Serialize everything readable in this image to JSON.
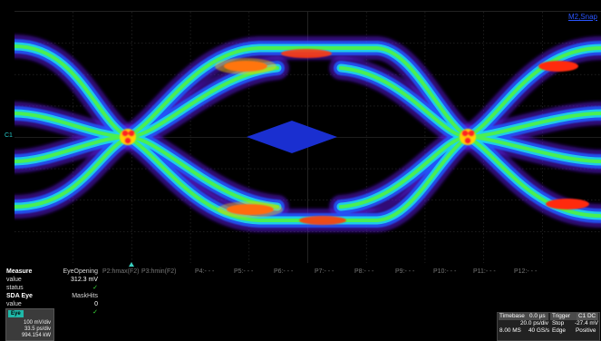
{
  "display": {
    "trace_label": "M2,Snap",
    "channel_marker": "C1"
  },
  "params": {
    "row1": {
      "title": "Measure",
      "value_label": "value",
      "status_label": "status",
      "columns": [
        {
          "header": "EyeOpening",
          "value": "312.3 mV",
          "status": "✓"
        },
        {
          "header": "P2:hmax(F2)",
          "value": "",
          "status": ""
        },
        {
          "header": "P3:hmin(F2)",
          "value": "",
          "status": ""
        },
        {
          "header": "P4:- - -",
          "value": "",
          "status": ""
        },
        {
          "header": "P5:- - -",
          "value": "",
          "status": ""
        },
        {
          "header": "P6:- - -",
          "value": "",
          "status": ""
        },
        {
          "header": "P7:- - -",
          "value": "",
          "status": ""
        },
        {
          "header": "P8:- - -",
          "value": "",
          "status": ""
        },
        {
          "header": "P9:- - -",
          "value": "",
          "status": ""
        },
        {
          "header": "P10:- - -",
          "value": "",
          "status": ""
        },
        {
          "header": "P11:- - -",
          "value": "",
          "status": ""
        },
        {
          "header": "P12:- - -",
          "value": "",
          "status": ""
        }
      ]
    },
    "row2": {
      "title": "SDA Eye",
      "value_label": "value",
      "status_label": "status",
      "header": "MaskHits",
      "value": "0",
      "status": "✓"
    }
  },
  "channel": {
    "tag": "Eye",
    "vdiv": "100 mV/div",
    "hdiv": "33.5 ps/div",
    "count": "994.154 kW"
  },
  "timebase": {
    "label": "Timebase",
    "offset": "0.0 µs",
    "hdiv": "20.0 ps/div",
    "samples": "8.00 MS",
    "rate": "40 GS/s"
  },
  "trigger": {
    "label": "Trigger",
    "source": "C1 DC",
    "mode": "Stop",
    "level": "-27.4 mV",
    "type": "Edge",
    "slope": "Positive"
  },
  "colors": {
    "grid": "#303030",
    "mask": "#1a2fd0",
    "checkmark": "#3ce03c",
    "channel_tag": "#1fb8a8"
  }
}
